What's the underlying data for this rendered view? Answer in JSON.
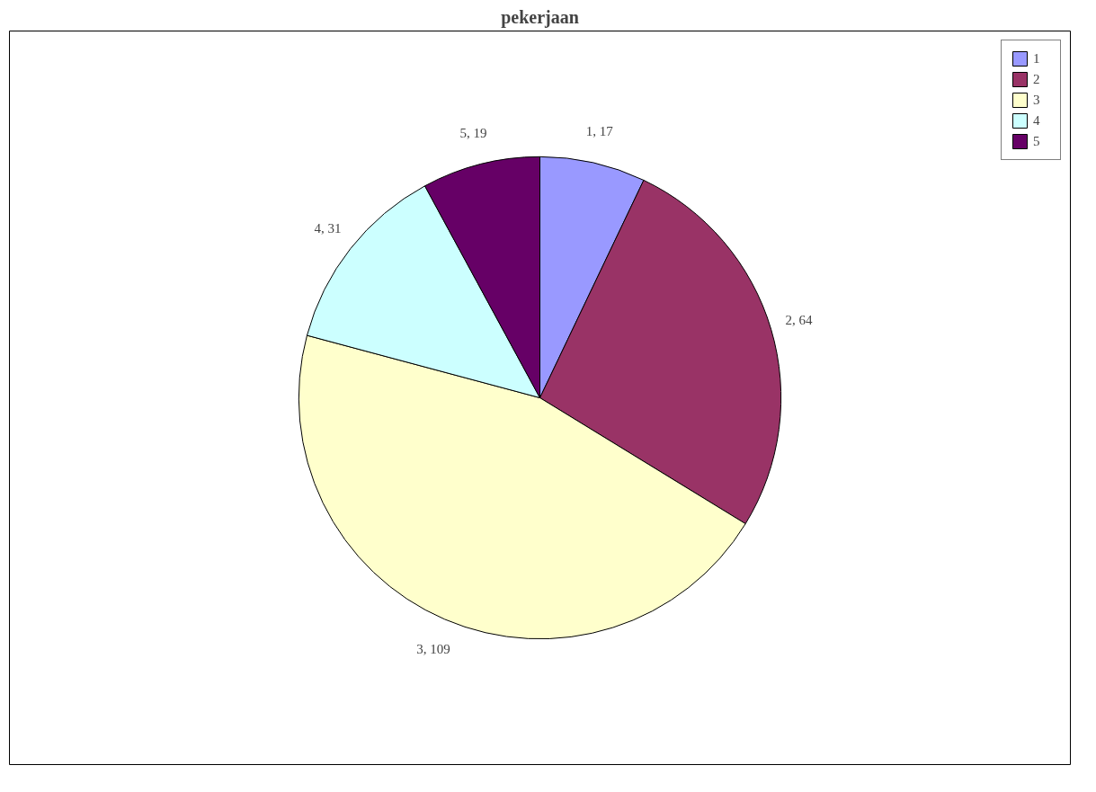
{
  "chart_data": {
    "type": "pie",
    "title": "pekerjaan",
    "categories": [
      "1",
      "2",
      "3",
      "4",
      "5"
    ],
    "values": [
      17,
      64,
      109,
      31,
      19
    ],
    "colors": [
      "#9999ff",
      "#993366",
      "#ffffcc",
      "#ccffff",
      "#660066"
    ],
    "value_labels": [
      "1, 17",
      "2, 64",
      "3, 109",
      "4, 31",
      "5, 19"
    ],
    "legend": "right"
  }
}
